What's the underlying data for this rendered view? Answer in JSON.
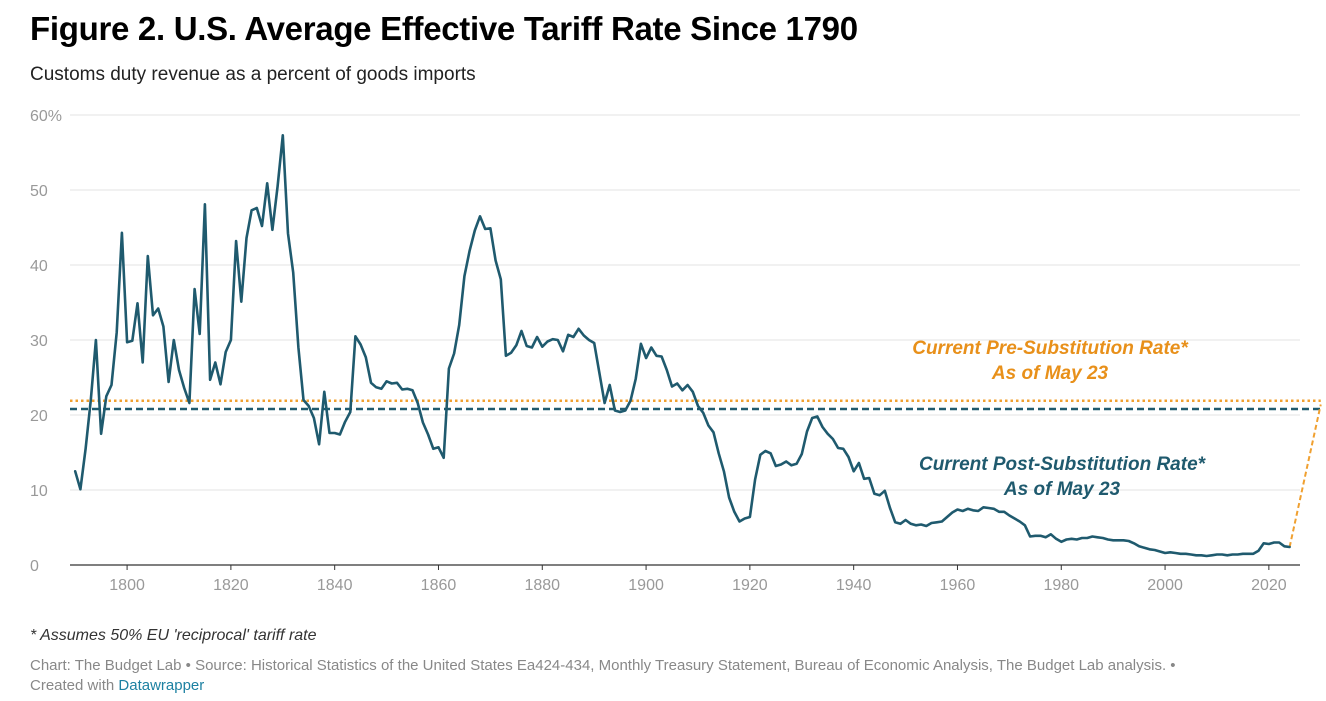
{
  "header": {
    "title": "Figure 2. U.S. Average Effective Tariff Rate Since 1790",
    "subtitle": "Customs duty revenue as a percent of goods imports"
  },
  "footer": {
    "note": "* Assumes 50% EU 'reciprocal' tariff rate",
    "source": "Chart: The Budget Lab • Source: Historical Statistics of the United States Ea424-434, Monthly Treasury Statement, Bureau of Economic Analysis, The Budget Lab analysis. •",
    "created_prefix": "Created with",
    "created_link": "Datawrapper"
  },
  "chart_data": {
    "type": "line",
    "title": "Figure 2. U.S. Average Effective Tariff Rate Since 1790",
    "subtitle": "Customs duty revenue as a percent of goods imports",
    "xlim": [
      1789,
      2026
    ],
    "ylim": [
      0,
      60
    ],
    "x_ticks": [
      "1800",
      "1820",
      "1840",
      "1860",
      "1880",
      "1900",
      "1920",
      "1940",
      "1960",
      "1980",
      "2000",
      "2020"
    ],
    "y_ticks": [
      "0",
      "10",
      "20",
      "30",
      "40",
      "50",
      "60%"
    ],
    "grid": true,
    "colors": {
      "line": "#1f5a6e",
      "pre": "#f0a030",
      "post": "#1f5a6e",
      "pre_text": "#e8901a",
      "post_text": "#1f5a6e"
    },
    "series": [
      {
        "points": [
          [
            1790,
            12.5
          ],
          [
            1791,
            10.1
          ],
          [
            1792,
            15.5
          ],
          [
            1793,
            22
          ],
          [
            1794,
            30
          ],
          [
            1795,
            17.5
          ],
          [
            1796,
            22.5
          ],
          [
            1797,
            24
          ],
          [
            1798,
            31
          ],
          [
            1799,
            44.3
          ],
          [
            1800,
            29.7
          ],
          [
            1801,
            29.9
          ],
          [
            1802,
            34.9
          ],
          [
            1803,
            27
          ],
          [
            1804,
            41.2
          ],
          [
            1805,
            33.3
          ],
          [
            1806,
            34.2
          ],
          [
            1807,
            31.8
          ],
          [
            1808,
            24.4
          ],
          [
            1809,
            30
          ],
          [
            1810,
            26
          ],
          [
            1811,
            23.6
          ],
          [
            1812,
            21.6
          ],
          [
            1813,
            36.8
          ],
          [
            1814,
            30.8
          ],
          [
            1815,
            48.1
          ],
          [
            1816,
            24.7
          ],
          [
            1817,
            27
          ],
          [
            1818,
            24.1
          ],
          [
            1819,
            28.4
          ],
          [
            1820,
            30
          ],
          [
            1821,
            43.2
          ],
          [
            1822,
            35.1
          ],
          [
            1823,
            43.6
          ],
          [
            1824,
            47.3
          ],
          [
            1825,
            47.6
          ],
          [
            1826,
            45.2
          ],
          [
            1827,
            50.9
          ],
          [
            1828,
            44.7
          ],
          [
            1829,
            50.5
          ],
          [
            1830,
            57.3
          ],
          [
            1831,
            44.2
          ],
          [
            1832,
            39
          ],
          [
            1833,
            29
          ],
          [
            1834,
            22
          ],
          [
            1835,
            21.2
          ],
          [
            1836,
            19.6
          ],
          [
            1837,
            16.1
          ],
          [
            1838,
            23.1
          ],
          [
            1839,
            17.6
          ],
          [
            1840,
            17.6
          ],
          [
            1841,
            17.4
          ],
          [
            1842,
            19.1
          ],
          [
            1843,
            20.4
          ],
          [
            1844,
            30.5
          ],
          [
            1845,
            29.4
          ],
          [
            1846,
            27.7
          ],
          [
            1847,
            24.3
          ],
          [
            1848,
            23.7
          ],
          [
            1849,
            23.5
          ],
          [
            1850,
            24.5
          ],
          [
            1851,
            24.2
          ],
          [
            1852,
            24.3
          ],
          [
            1853,
            23.4
          ],
          [
            1854,
            23.5
          ],
          [
            1855,
            23.3
          ],
          [
            1856,
            21.6
          ],
          [
            1857,
            19
          ],
          [
            1858,
            17.4
          ],
          [
            1859,
            15.5
          ],
          [
            1860,
            15.7
          ],
          [
            1861,
            14.3
          ],
          [
            1862,
            26.2
          ],
          [
            1863,
            28.2
          ],
          [
            1864,
            32
          ],
          [
            1865,
            38.5
          ],
          [
            1866,
            41.9
          ],
          [
            1867,
            44.6
          ],
          [
            1868,
            46.5
          ],
          [
            1869,
            44.8
          ],
          [
            1870,
            44.9
          ],
          [
            1871,
            40.6
          ],
          [
            1872,
            38.1
          ],
          [
            1873,
            27.9
          ],
          [
            1874,
            28.3
          ],
          [
            1875,
            29.3
          ],
          [
            1876,
            31.2
          ],
          [
            1877,
            29.2
          ],
          [
            1878,
            29
          ],
          [
            1879,
            30.4
          ],
          [
            1880,
            29.1
          ],
          [
            1881,
            29.8
          ],
          [
            1882,
            30.1
          ],
          [
            1883,
            30
          ],
          [
            1884,
            28.5
          ],
          [
            1885,
            30.7
          ],
          [
            1886,
            30.4
          ],
          [
            1887,
            31.5
          ],
          [
            1888,
            30.6
          ],
          [
            1889,
            30
          ],
          [
            1890,
            29.6
          ],
          [
            1891,
            25.6
          ],
          [
            1892,
            21.6
          ],
          [
            1893,
            24
          ],
          [
            1894,
            20.6
          ],
          [
            1895,
            20.4
          ],
          [
            1896,
            20.6
          ],
          [
            1897,
            21.9
          ],
          [
            1898,
            24.8
          ],
          [
            1899,
            29.5
          ],
          [
            1900,
            27.6
          ],
          [
            1901,
            29
          ],
          [
            1902,
            27.9
          ],
          [
            1903,
            27.8
          ],
          [
            1904,
            26
          ],
          [
            1905,
            23.8
          ],
          [
            1906,
            24.2
          ],
          [
            1907,
            23.3
          ],
          [
            1908,
            24
          ],
          [
            1909,
            23.1
          ],
          [
            1910,
            21.2
          ],
          [
            1911,
            20.3
          ],
          [
            1912,
            18.6
          ],
          [
            1913,
            17.7
          ],
          [
            1914,
            14.9
          ],
          [
            1915,
            12.5
          ],
          [
            1916,
            9
          ],
          [
            1917,
            7.1
          ],
          [
            1918,
            5.8
          ],
          [
            1919,
            6.2
          ],
          [
            1920,
            6.4
          ],
          [
            1921,
            11.4
          ],
          [
            1922,
            14.7
          ],
          [
            1923,
            15.2
          ],
          [
            1924,
            14.9
          ],
          [
            1925,
            13.2
          ],
          [
            1926,
            13.4
          ],
          [
            1927,
            13.8
          ],
          [
            1928,
            13.3
          ],
          [
            1929,
            13.5
          ],
          [
            1930,
            14.8
          ],
          [
            1931,
            17.8
          ],
          [
            1932,
            19.6
          ],
          [
            1933,
            19.8
          ],
          [
            1934,
            18.4
          ],
          [
            1935,
            17.5
          ],
          [
            1936,
            16.8
          ],
          [
            1937,
            15.6
          ],
          [
            1938,
            15.5
          ],
          [
            1939,
            14.4
          ],
          [
            1940,
            12.5
          ],
          [
            1941,
            13.6
          ],
          [
            1942,
            11.5
          ],
          [
            1943,
            11.6
          ],
          [
            1944,
            9.5
          ],
          [
            1945,
            9.3
          ],
          [
            1946,
            9.9
          ],
          [
            1947,
            7.6
          ],
          [
            1948,
            5.7
          ],
          [
            1949,
            5.5
          ],
          [
            1950,
            6
          ],
          [
            1951,
            5.5
          ],
          [
            1952,
            5.3
          ],
          [
            1953,
            5.4
          ],
          [
            1954,
            5.2
          ],
          [
            1955,
            5.6
          ],
          [
            1956,
            5.7
          ],
          [
            1957,
            5.8
          ],
          [
            1958,
            6.4
          ],
          [
            1959,
            7
          ],
          [
            1960,
            7.4
          ],
          [
            1961,
            7.2
          ],
          [
            1962,
            7.5
          ],
          [
            1963,
            7.3
          ],
          [
            1964,
            7.2
          ],
          [
            1965,
            7.7
          ],
          [
            1966,
            7.6
          ],
          [
            1967,
            7.5
          ],
          [
            1968,
            7.1
          ],
          [
            1969,
            7.1
          ],
          [
            1970,
            6.6
          ],
          [
            1971,
            6.2
          ],
          [
            1972,
            5.8
          ],
          [
            1973,
            5.3
          ],
          [
            1974,
            3.8
          ],
          [
            1975,
            3.9
          ],
          [
            1976,
            3.9
          ],
          [
            1977,
            3.7
          ],
          [
            1978,
            4.1
          ],
          [
            1979,
            3.5
          ],
          [
            1980,
            3.1
          ],
          [
            1981,
            3.4
          ],
          [
            1982,
            3.5
          ],
          [
            1983,
            3.4
          ],
          [
            1984,
            3.6
          ],
          [
            1985,
            3.6
          ],
          [
            1986,
            3.8
          ],
          [
            1987,
            3.7
          ],
          [
            1988,
            3.6
          ],
          [
            1989,
            3.4
          ],
          [
            1990,
            3.3
          ],
          [
            1991,
            3.3
          ],
          [
            1992,
            3.3
          ],
          [
            1993,
            3.2
          ],
          [
            1994,
            2.9
          ],
          [
            1995,
            2.5
          ],
          [
            1996,
            2.3
          ],
          [
            1997,
            2.1
          ],
          [
            1998,
            2
          ],
          [
            1999,
            1.8
          ],
          [
            2000,
            1.6
          ],
          [
            2001,
            1.7
          ],
          [
            2002,
            1.6
          ],
          [
            2003,
            1.5
          ],
          [
            2004,
            1.5
          ],
          [
            2005,
            1.4
          ],
          [
            2006,
            1.3
          ],
          [
            2007,
            1.3
          ],
          [
            2008,
            1.2
          ],
          [
            2009,
            1.3
          ],
          [
            2010,
            1.4
          ],
          [
            2011,
            1.4
          ],
          [
            2012,
            1.3
          ],
          [
            2013,
            1.4
          ],
          [
            2014,
            1.4
          ],
          [
            2015,
            1.5
          ],
          [
            2016,
            1.5
          ],
          [
            2017,
            1.5
          ],
          [
            2018,
            1.9
          ],
          [
            2019,
            2.9
          ],
          [
            2020,
            2.8
          ],
          [
            2021,
            3
          ],
          [
            2022,
            3
          ],
          [
            2023,
            2.5
          ],
          [
            2024,
            2.4
          ]
        ]
      }
    ],
    "reference_lines": [
      {
        "label": "Current Pre-Substitution Rate*",
        "sublabel": "As of May 23",
        "value": 21.9,
        "style": "dotted",
        "x_start": 1789,
        "x_end": 2030
      },
      {
        "label": "Current Post-Substitution Rate*",
        "sublabel": "As of May 23",
        "value": 20.8,
        "style": "dashed",
        "x_start": 1789,
        "x_end": 2030
      }
    ],
    "connector": {
      "from": [
        2024,
        2.4
      ],
      "to": [
        2030,
        21.4
      ],
      "style": "dashed"
    }
  }
}
